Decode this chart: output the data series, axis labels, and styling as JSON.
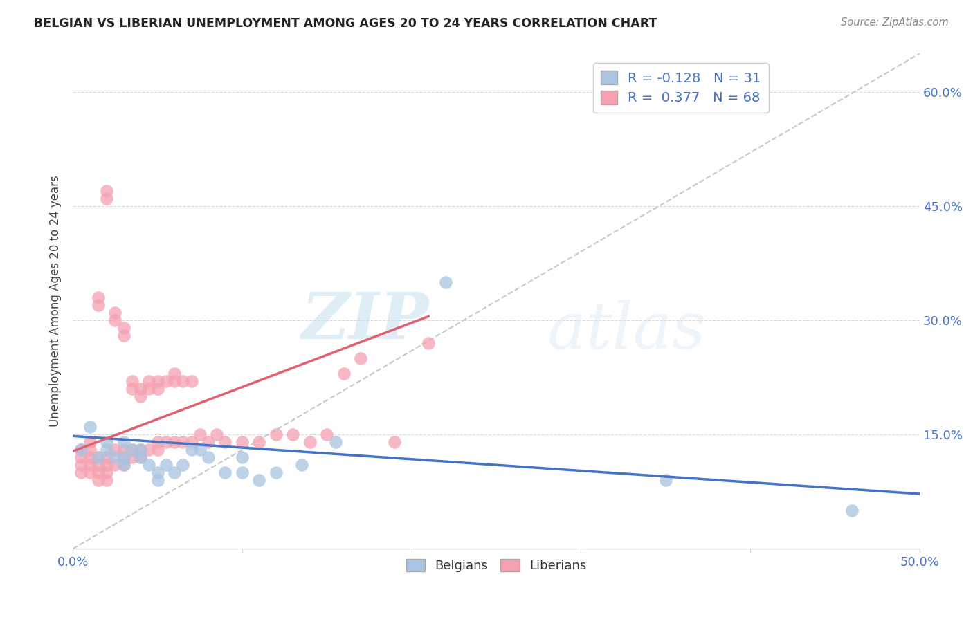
{
  "title": "BELGIAN VS LIBERIAN UNEMPLOYMENT AMONG AGES 20 TO 24 YEARS CORRELATION CHART",
  "source": "Source: ZipAtlas.com",
  "ylabel": "Unemployment Among Ages 20 to 24 years",
  "xlim": [
    0.0,
    0.5
  ],
  "ylim": [
    0.0,
    0.65
  ],
  "xticks": [
    0.0,
    0.1,
    0.2,
    0.3,
    0.4,
    0.5
  ],
  "yticks": [
    0.0,
    0.15,
    0.3,
    0.45,
    0.6
  ],
  "ytick_labels_right": [
    "",
    "15.0%",
    "30.0%",
    "45.0%",
    "60.0%"
  ],
  "xtick_labels": [
    "0.0%",
    "",
    "",
    "",
    "",
    "50.0%"
  ],
  "belgian_color": "#a8c4e0",
  "liberian_color": "#f4a0b0",
  "belgian_line_color": "#4472c4",
  "liberian_line_color": "#e06070",
  "r_belgian": -0.128,
  "n_belgian": 31,
  "r_liberian": 0.377,
  "n_liberian": 68,
  "legend_r_color": "#4472c4",
  "watermark_zip": "ZIP",
  "watermark_atlas": "atlas",
  "belgians_x": [
    0.005,
    0.01,
    0.015,
    0.02,
    0.02,
    0.025,
    0.03,
    0.03,
    0.03,
    0.035,
    0.04,
    0.04,
    0.045,
    0.05,
    0.05,
    0.055,
    0.06,
    0.065,
    0.07,
    0.075,
    0.08,
    0.09,
    0.1,
    0.1,
    0.11,
    0.12,
    0.135,
    0.155,
    0.22,
    0.35,
    0.46
  ],
  "belgians_y": [
    0.13,
    0.16,
    0.12,
    0.14,
    0.13,
    0.12,
    0.14,
    0.12,
    0.11,
    0.13,
    0.12,
    0.13,
    0.11,
    0.09,
    0.1,
    0.11,
    0.1,
    0.11,
    0.13,
    0.13,
    0.12,
    0.1,
    0.1,
    0.12,
    0.09,
    0.1,
    0.11,
    0.14,
    0.35,
    0.09,
    0.05
  ],
  "liberians_x": [
    0.005,
    0.005,
    0.005,
    0.005,
    0.01,
    0.01,
    0.01,
    0.01,
    0.01,
    0.015,
    0.015,
    0.015,
    0.015,
    0.015,
    0.015,
    0.02,
    0.02,
    0.02,
    0.02,
    0.02,
    0.02,
    0.025,
    0.025,
    0.025,
    0.025,
    0.03,
    0.03,
    0.03,
    0.03,
    0.03,
    0.035,
    0.035,
    0.035,
    0.035,
    0.04,
    0.04,
    0.04,
    0.04,
    0.045,
    0.045,
    0.045,
    0.05,
    0.05,
    0.05,
    0.05,
    0.055,
    0.055,
    0.06,
    0.06,
    0.06,
    0.065,
    0.065,
    0.07,
    0.07,
    0.075,
    0.08,
    0.085,
    0.09,
    0.1,
    0.11,
    0.12,
    0.13,
    0.14,
    0.15,
    0.16,
    0.17,
    0.19,
    0.21
  ],
  "liberians_y": [
    0.13,
    0.11,
    0.1,
    0.12,
    0.14,
    0.13,
    0.12,
    0.11,
    0.1,
    0.33,
    0.32,
    0.11,
    0.1,
    0.12,
    0.09,
    0.47,
    0.46,
    0.12,
    0.11,
    0.1,
    0.09,
    0.31,
    0.3,
    0.13,
    0.11,
    0.29,
    0.28,
    0.13,
    0.12,
    0.11,
    0.22,
    0.21,
    0.13,
    0.12,
    0.21,
    0.2,
    0.13,
    0.12,
    0.22,
    0.21,
    0.13,
    0.22,
    0.21,
    0.14,
    0.13,
    0.22,
    0.14,
    0.23,
    0.22,
    0.14,
    0.22,
    0.14,
    0.22,
    0.14,
    0.15,
    0.14,
    0.15,
    0.14,
    0.14,
    0.14,
    0.15,
    0.15,
    0.14,
    0.15,
    0.23,
    0.25,
    0.14,
    0.27
  ],
  "belgian_trend_x": [
    0.0,
    0.5
  ],
  "belgian_trend_y": [
    0.148,
    0.072
  ],
  "liberian_trend_x": [
    0.0,
    0.21
  ],
  "liberian_trend_y": [
    0.128,
    0.305
  ],
  "ref_line_x": [
    0.0,
    0.5
  ],
  "ref_line_y": [
    0.0,
    0.65
  ]
}
